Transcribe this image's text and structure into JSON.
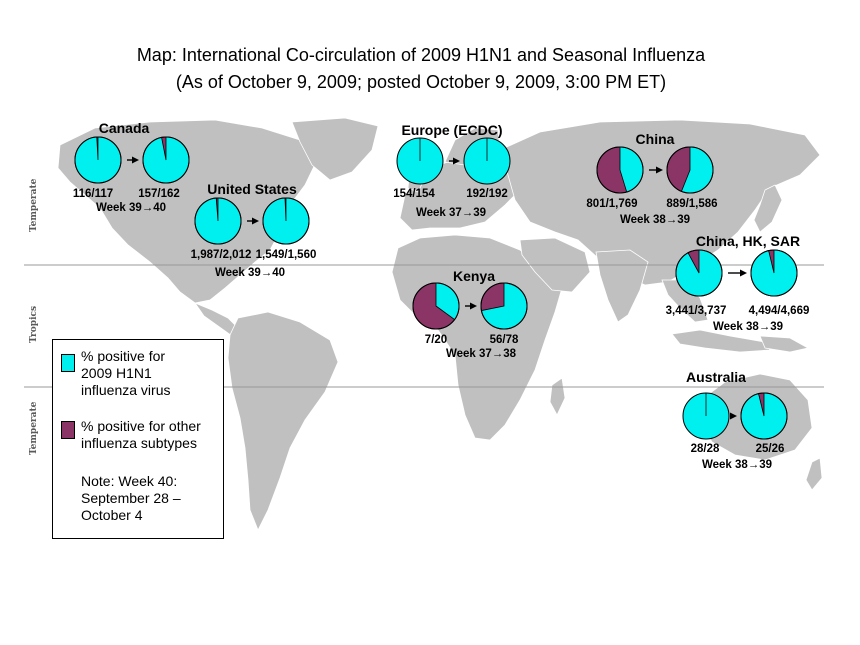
{
  "title": {
    "line1": "Map: International Co-circulation of 2009 H1N1 and Seasonal Influenza",
    "line2": "(As of October 9, 2009; posted October 9, 2009, 3:00 PM ET)"
  },
  "zones": {
    "temperate_north": "Temperate",
    "tropics": "Tropics",
    "temperate_south": "Temperate"
  },
  "colors": {
    "h1n1": "#00f0f0",
    "other": "#8b3567",
    "land": "#c0c0c0",
    "ocean": "#ffffff"
  },
  "legend": {
    "h1n1_label": [
      "% positive for",
      "2009 H1N1",
      "influenza virus"
    ],
    "other_label": [
      "% positive for other",
      "influenza subtypes"
    ],
    "note": [
      "Note: Week 40:",
      "September 28 –",
      "October 4"
    ]
  },
  "chart_data": {
    "type": "pie",
    "legend_placement": "bottom-left",
    "series_names": [
      "% positive for 2009 H1N1 influenza virus",
      "% positive for other influenza subtypes"
    ],
    "regions": [
      {
        "name": "Canada",
        "week": "Week 39→40",
        "pies": [
          {
            "label": "116/117",
            "h1n1": 116,
            "total": 117
          },
          {
            "label": "157/162",
            "h1n1": 157,
            "total": 162
          }
        ]
      },
      {
        "name": "United States",
        "week": "Week 39→40",
        "pies": [
          {
            "label": "1,987/2,012",
            "h1n1": 1987,
            "total": 2012
          },
          {
            "label": "1,549/1,560",
            "h1n1": 1549,
            "total": 1560
          }
        ]
      },
      {
        "name": "Europe (ECDC)",
        "week": "Week 37→39",
        "pies": [
          {
            "label": "154/154",
            "h1n1": 154,
            "total": 154
          },
          {
            "label": "192/192",
            "h1n1": 192,
            "total": 192
          }
        ]
      },
      {
        "name": "China",
        "week": "Week 38→39",
        "pies": [
          {
            "label": "801/1,769",
            "h1n1": 801,
            "total": 1769
          },
          {
            "label": "889/1,586",
            "h1n1": 889,
            "total": 1586
          }
        ]
      },
      {
        "name": "China, HK, SAR",
        "week": "Week 38→39",
        "pies": [
          {
            "label": "3,441/3,737",
            "h1n1": 3441,
            "total": 3737
          },
          {
            "label": "4,494/4,669",
            "h1n1": 4494,
            "total": 4669
          }
        ]
      },
      {
        "name": "Kenya",
        "week": "Week 37→38",
        "pies": [
          {
            "label": "7/20",
            "h1n1": 7,
            "total": 20
          },
          {
            "label": "56/78",
            "h1n1": 56,
            "total": 78
          }
        ]
      },
      {
        "name": "Australia",
        "week": "Week 38→39",
        "pies": [
          {
            "label": "28/28",
            "h1n1": 28,
            "total": 28
          },
          {
            "label": "25/26",
            "h1n1": 25,
            "total": 26
          }
        ]
      }
    ]
  }
}
